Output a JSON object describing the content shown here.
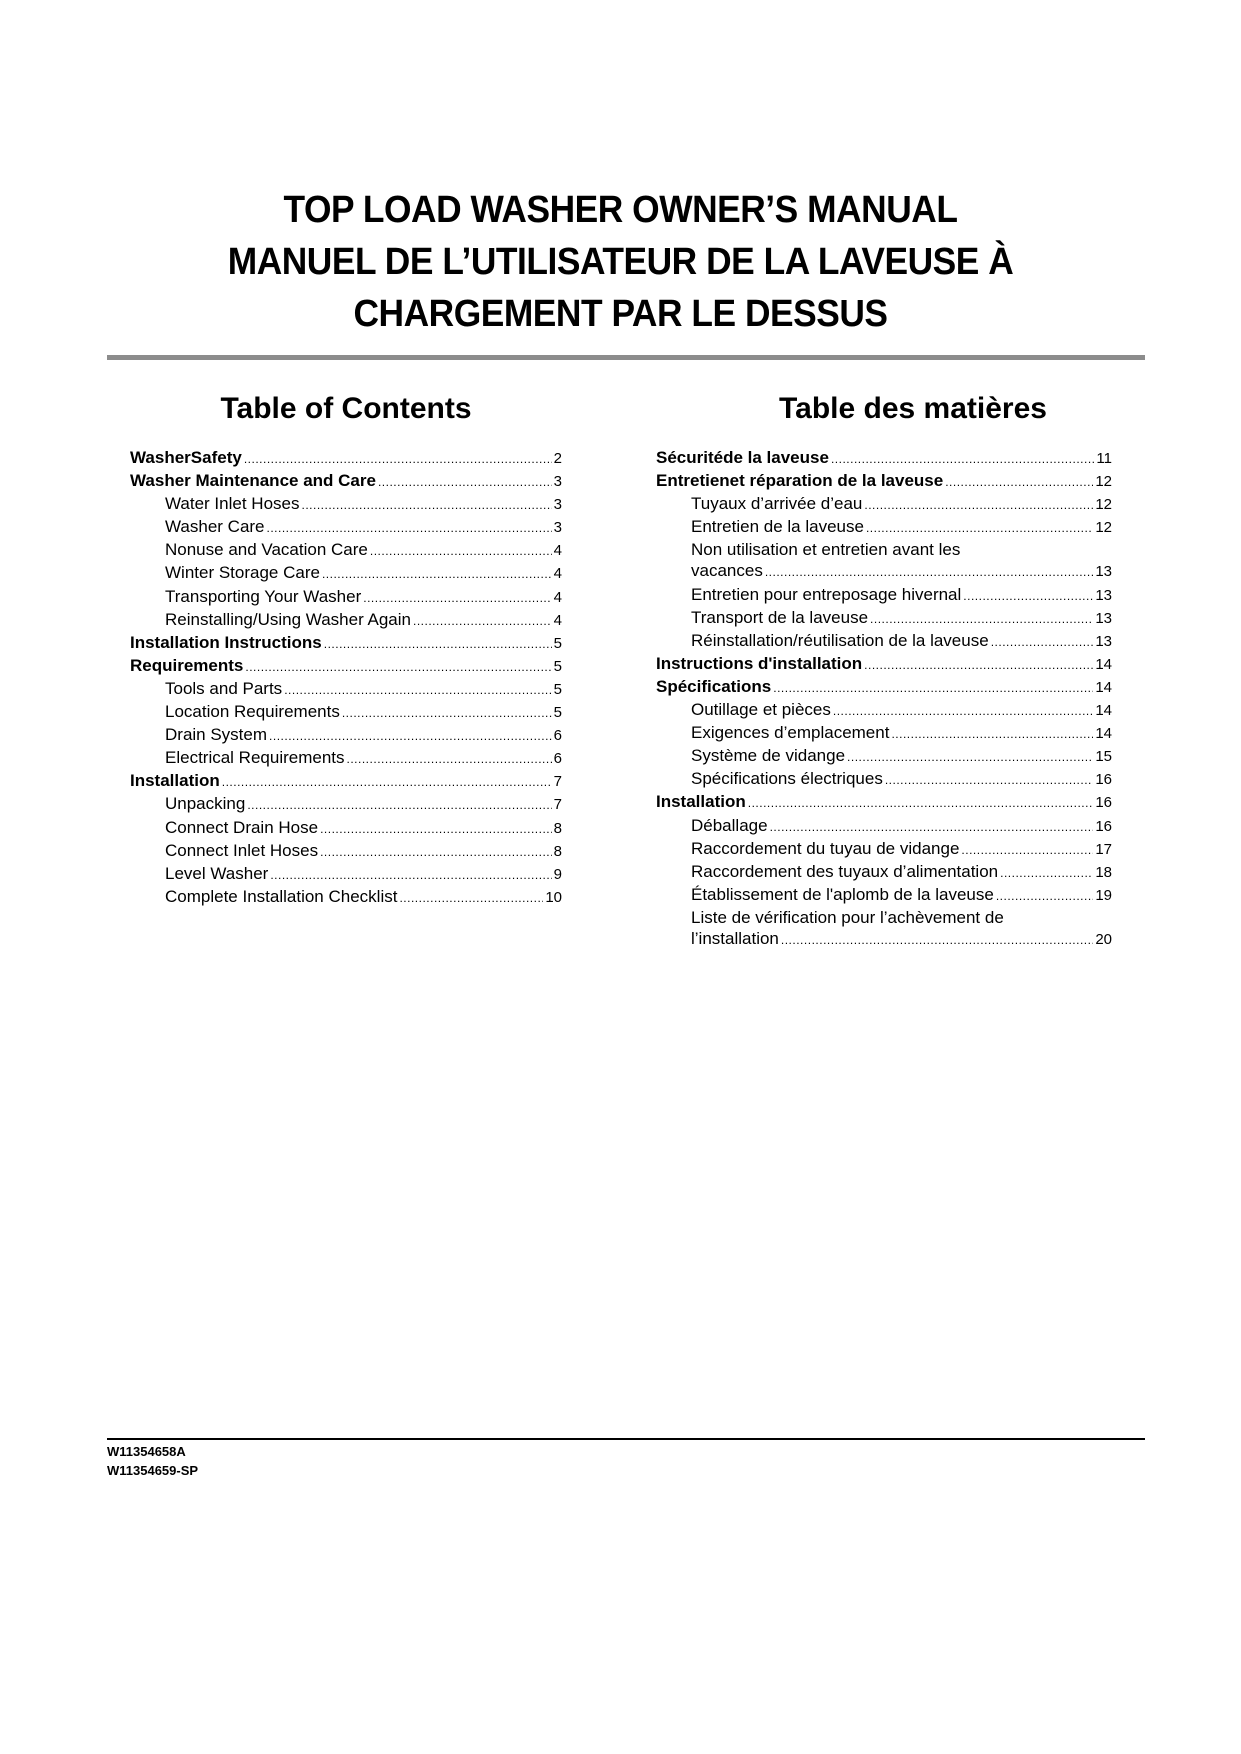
{
  "title_lines": [
    "TOP LOAD WASHER OWNER’S MANUAL",
    "MANUEL DE L’UTILISATEUR DE LA LAVEUSE À",
    "CHARGEMENT PAR LE DESSUS"
  ],
  "toc_en": {
    "heading": "Table of Contents",
    "items": [
      {
        "label": "WasherSafety",
        "page": "2",
        "level": "main"
      },
      {
        "label": "Washer Maintenance and Care",
        "page": "3",
        "level": "main"
      },
      {
        "label": "Water Inlet Hoses",
        "page": "3",
        "level": "sub"
      },
      {
        "label": "Washer Care",
        "page": "3",
        "level": "sub"
      },
      {
        "label": "Nonuse and Vacation Care",
        "page": "4",
        "level": "sub"
      },
      {
        "label": "Winter Storage Care",
        "page": "4",
        "level": "sub"
      },
      {
        "label": "Transporting Your Washer",
        "page": "4",
        "level": "sub"
      },
      {
        "label": "Reinstalling/Using Washer Again",
        "page": "4",
        "level": "sub"
      },
      {
        "label": "Installation Instructions",
        "page": "5",
        "level": "main"
      },
      {
        "label": "Requirements",
        "page": "5",
        "level": "main"
      },
      {
        "label": "Tools and Parts",
        "page": "5",
        "level": "sub"
      },
      {
        "label": "Location Requirements",
        "page": "5",
        "level": "sub"
      },
      {
        "label": "Drain System",
        "page": "6",
        "level": "sub"
      },
      {
        "label": "Electrical Requirements",
        "page": "6",
        "level": "sub"
      },
      {
        "label": "Installation",
        "page": "7",
        "level": "main"
      },
      {
        "label": "Unpacking",
        "page": "7",
        "level": "sub"
      },
      {
        "label": "Connect Drain Hose",
        "page": "8",
        "level": "sub"
      },
      {
        "label": "Connect Inlet Hoses",
        "page": "8",
        "level": "sub"
      },
      {
        "label": "Level Washer",
        "page": "9",
        "level": "sub"
      },
      {
        "label": "Complete Installation Checklist",
        "page": "10",
        "level": "sub"
      }
    ]
  },
  "toc_fr": {
    "heading": "Table des matières",
    "items": [
      {
        "label": "Sécuritéde la laveuse",
        "page": "11",
        "level": "main"
      },
      {
        "label": "Entretienet réparation de la laveuse",
        "page": "12",
        "level": "main"
      },
      {
        "label": "Tuyaux d’arrivée d’eau",
        "page": "12",
        "level": "sub"
      },
      {
        "label": "Entretien de la laveuse",
        "page": "12",
        "level": "sub"
      },
      {
        "label": "Non utilisation et entretien avant les",
        "page": "",
        "level": "sub"
      },
      {
        "label": "vacances",
        "page": "13",
        "level": "sub"
      },
      {
        "label": "Entretien pour entreposage hivernal",
        "page": "13",
        "level": "sub"
      },
      {
        "label": "Transport de la laveuse",
        "page": "13",
        "level": "sub"
      },
      {
        "label": "Réinstallation/réutilisation de la laveuse",
        "page": "13",
        "level": "sub"
      },
      {
        "label": "Instructions d'installation",
        "page": "14",
        "level": "main"
      },
      {
        "label": "Spécifications",
        "page": "14",
        "level": "main"
      },
      {
        "label": "Outillage et pièces",
        "page": "14",
        "level": "sub"
      },
      {
        "label": "Exigences d’emplacement",
        "page": "14",
        "level": "sub"
      },
      {
        "label": "Système de vidange",
        "page": "15",
        "level": "sub"
      },
      {
        "label": "Spécifications électriques",
        "page": "16",
        "level": "sub"
      },
      {
        "label": "Installation",
        "page": "16",
        "level": "main"
      },
      {
        "label": "Déballage",
        "page": "16",
        "level": "sub"
      },
      {
        "label": "Raccordement du tuyau de vidange",
        "page": "17",
        "level": "sub"
      },
      {
        "label": "Raccordement des tuyaux d’alimentation",
        "page": "18",
        "level": "sub"
      },
      {
        "label": "Établissement de l'aplomb de la laveuse",
        "page": "19",
        "level": "sub"
      },
      {
        "label": "Liste de vérification pour l’achèvement de",
        "page": "",
        "level": "sub"
      },
      {
        "label": "l’installation",
        "page": "20",
        "level": "sub"
      }
    ]
  },
  "codes": [
    "W11354658A",
    "W11354659-SP"
  ]
}
